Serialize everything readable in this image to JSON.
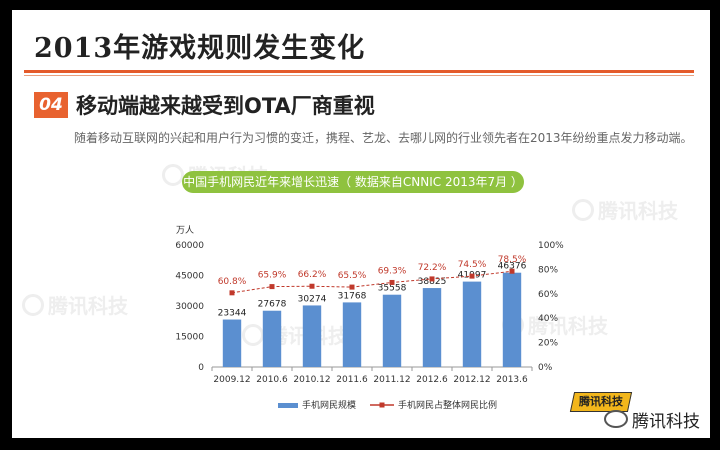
{
  "header": {
    "title": "2013年游戏规则发生变化"
  },
  "section": {
    "number": "04",
    "title": "移动端越来越受到OTA厂商重视",
    "description": "随着移动互联网的兴起和用户行为习惯的变迁，携程、艺龙、去哪儿网的行业领先者在2013年纷纷重点发力移动端。"
  },
  "chart_caption": "中国手机网民近年来增长迅速（ 数据来自CNNIC 2013年7月 ）",
  "watermark": {
    "text": "腾讯科技"
  },
  "footer": {
    "brand": "腾讯科技",
    "logo_text": "腾讯科技"
  },
  "colors": {
    "bar": "#5b8fd0",
    "line": "#c0392b",
    "accent": "#e8622f",
    "pill": "#8fc23f"
  },
  "chart_data": {
    "type": "bar",
    "categories": [
      "2009.12",
      "2010.6",
      "2010.12",
      "2011.6",
      "2011.12",
      "2012.6",
      "2012.12",
      "2013.6"
    ],
    "series": [
      {
        "name": "手机网民规模",
        "type": "bar",
        "axis": "left",
        "values": [
          23344,
          27678,
          30274,
          31768,
          35558,
          38825,
          41997,
          46376
        ]
      },
      {
        "name": "手机网民占整体网民比例",
        "type": "line",
        "axis": "right",
        "values": [
          60.8,
          65.9,
          66.2,
          65.5,
          69.3,
          72.2,
          74.5,
          78.5
        ],
        "labels": [
          "60.8%",
          "65.9%",
          "66.2%",
          "65.5%",
          "69.3%",
          "72.2%",
          "74.5%",
          "78.5%"
        ]
      }
    ],
    "ylabel": "万人",
    "ylim": [
      0,
      60000
    ],
    "yticks": [
      "0",
      "15000",
      "30000",
      "45000",
      "60000"
    ],
    "y2lim": [
      0,
      100
    ],
    "y2ticks": [
      "0%",
      "20%",
      "40%",
      "60%",
      "80%",
      "100%"
    ],
    "grid": false,
    "legend_position": "bottom"
  }
}
